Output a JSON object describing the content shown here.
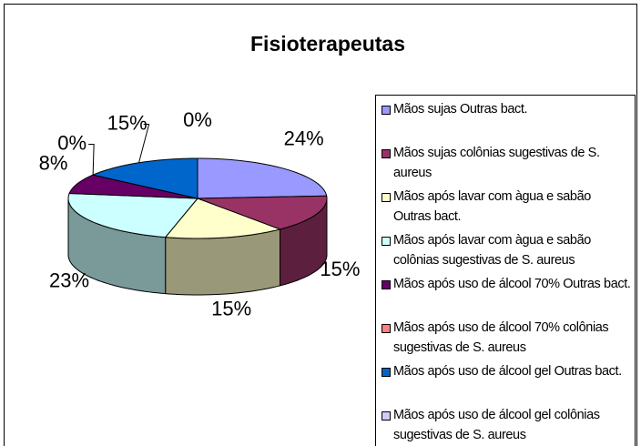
{
  "chart_data": {
    "type": "pie",
    "title": "Fisioterapeutas",
    "categories": [
      "Mãos sujas Outras bact.",
      "Mãos sujas colônias sugestivas de S. aureus",
      "Mãos após lavar com àgua e sabão Outras bact.",
      "Mãos após lavar com àgua e sabão colônias sugestivas de S. aureus",
      "Mãos após uso de álcool 70% Outras bact.",
      "Mãos após uso de álcool 70% colônias sugestivas de S. aureus",
      "Mãos após uso de álcool gel Outras bact.",
      "Mãos após uso de álcool gel colônias sugestivas de S. aureus"
    ],
    "values": [
      24,
      15,
      15,
      23,
      8,
      0,
      15,
      0
    ],
    "value_labels": [
      "24%",
      "15%",
      "15%",
      "23%",
      "8%",
      "0%",
      "15%",
      "0%"
    ],
    "colors": [
      "#9999FF",
      "#993366",
      "#FFFFCC",
      "#CCFFFF",
      "#660066",
      "#FF8080",
      "#0066CC",
      "#CCCCFF"
    ],
    "legend": "right"
  }
}
